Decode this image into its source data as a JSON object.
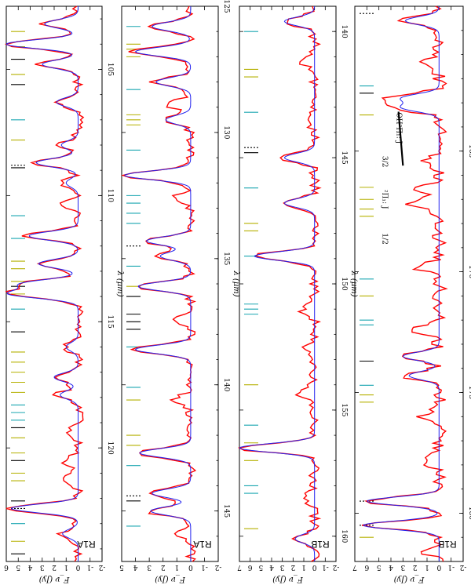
{
  "colors": {
    "observed": "#ff0000",
    "model": "#2222ee",
    "line_h2o": "#b5b000",
    "line_oh": "#1aa6b0",
    "line_other": "#000000",
    "dashed": "#000000"
  },
  "chart_data": [
    {
      "panel": "R1A",
      "type": "line",
      "xlabel": "λ (μm)",
      "ylabel": "F_ν (Jy)",
      "xlim": [
        102.5,
        124.5
      ],
      "ylim": [
        -2,
        6
      ],
      "xticks": [
        105,
        110,
        115,
        120
      ],
      "yticks": [
        -2,
        -1,
        0,
        1,
        2,
        3,
        4,
        5,
        6
      ],
      "series": [
        {
          "kind": "observed",
          "baseline": 0.0,
          "noise": 0.45,
          "peaks": [
            [
              103.2,
              3.0
            ],
            [
              104.0,
              6.2
            ],
            [
              104.8,
              3.2
            ],
            [
              106.3,
              2.0
            ],
            [
              108.0,
              1.6
            ],
            [
              108.7,
              3.7
            ],
            [
              109.5,
              1.2
            ],
            [
              110.3,
              1.2
            ],
            [
              111.6,
              4.3
            ],
            [
              112.7,
              3.5
            ],
            [
              113.5,
              4.8
            ],
            [
              113.9,
              5.8
            ],
            [
              116.0,
              1.2
            ],
            [
              117.2,
              2.2
            ],
            [
              117.9,
              1.7
            ],
            [
              119.4,
              1.0
            ],
            [
              120.5,
              1.2
            ],
            [
              121.2,
              1.0
            ],
            [
              122.4,
              5.8
            ],
            [
              123.4,
              1.5
            ]
          ]
        },
        {
          "kind": "model",
          "baseline": 0.0,
          "peaks": [
            [
              103.2,
              2.8
            ],
            [
              104.0,
              6.0
            ],
            [
              104.8,
              3.0
            ],
            [
              106.3,
              1.8
            ],
            [
              108.0,
              1.4
            ],
            [
              108.7,
              3.5
            ],
            [
              109.5,
              1.0
            ],
            [
              111.6,
              4.1
            ],
            [
              112.7,
              3.3
            ],
            [
              113.5,
              4.6
            ],
            [
              113.9,
              5.6
            ],
            [
              116.0,
              1.0
            ],
            [
              117.2,
              2.0
            ],
            [
              117.9,
              1.5
            ],
            [
              122.4,
              5.6
            ],
            [
              123.4,
              1.3
            ]
          ]
        }
      ],
      "line_markers": [
        {
          "x": 103.5,
          "species": "h2o"
        },
        {
          "x": 104.1,
          "species": "h2o"
        },
        {
          "x": 104.6,
          "species": "other"
        },
        {
          "x": 105.2,
          "species": "h2o"
        },
        {
          "x": 105.6,
          "species": "other"
        },
        {
          "x": 107.0,
          "species": "oh"
        },
        {
          "x": 107.8,
          "species": "h2o"
        },
        {
          "x": 108.8,
          "species": "dashed"
        },
        {
          "x": 108.9,
          "species": "other"
        },
        {
          "x": 110.8,
          "species": "oh"
        },
        {
          "x": 111.7,
          "species": "oh"
        },
        {
          "x": 112.6,
          "species": "h2o"
        },
        {
          "x": 112.9,
          "species": "h2o"
        },
        {
          "x": 113.4,
          "species": "h2o"
        },
        {
          "x": 113.6,
          "species": "other"
        },
        {
          "x": 113.9,
          "species": "h2o"
        },
        {
          "x": 114.5,
          "species": "oh"
        },
        {
          "x": 115.4,
          "species": "other"
        },
        {
          "x": 116.2,
          "species": "h2o"
        },
        {
          "x": 116.6,
          "species": "h2o"
        },
        {
          "x": 117.0,
          "species": "h2o"
        },
        {
          "x": 117.4,
          "species": "h2o"
        },
        {
          "x": 117.8,
          "species": "h2o"
        },
        {
          "x": 118.3,
          "species": "oh"
        },
        {
          "x": 118.6,
          "species": "oh"
        },
        {
          "x": 118.9,
          "species": "oh"
        },
        {
          "x": 119.2,
          "species": "other"
        },
        {
          "x": 119.6,
          "species": "h2o"
        },
        {
          "x": 120.2,
          "species": "h2o"
        },
        {
          "x": 120.5,
          "species": "other"
        },
        {
          "x": 121.0,
          "species": "h2o"
        },
        {
          "x": 121.3,
          "species": "h2o"
        },
        {
          "x": 122.1,
          "species": "other"
        },
        {
          "x": 122.4,
          "species": "dashed"
        },
        {
          "x": 123.0,
          "species": "oh"
        },
        {
          "x": 123.7,
          "species": "h2o"
        },
        {
          "x": 124.2,
          "species": "other"
        }
      ]
    },
    {
      "panel": "R1A",
      "type": "line",
      "xlabel": "λ (μm)",
      "ylabel": "F_ν (Jy)",
      "xlim": [
        125,
        147
      ],
      "ylim": [
        -2,
        5
      ],
      "xticks": [
        125,
        130,
        135,
        140,
        145
      ],
      "yticks": [
        -2,
        -1,
        0,
        1,
        2,
        3,
        4,
        5
      ],
      "series": [
        {
          "kind": "observed",
          "baseline": 0.0,
          "noise": 0.35,
          "peaks": [
            [
              125.8,
              3.0
            ],
            [
              126.8,
              4.2
            ],
            [
              128.0,
              2.7
            ],
            [
              128.9,
              1.8
            ],
            [
              129.5,
              2.0
            ],
            [
              131.7,
              5.0
            ],
            [
              132.6,
              1.2
            ],
            [
              134.3,
              3.4
            ],
            [
              134.9,
              2.4
            ],
            [
              136.1,
              4.0
            ],
            [
              137.4,
              1.5
            ],
            [
              138.6,
              4.2
            ],
            [
              140.6,
              1.2
            ],
            [
              142.7,
              3.9
            ],
            [
              144.3,
              3.2
            ],
            [
              145.0,
              3.2
            ],
            [
              145.9,
              1.2
            ]
          ]
        },
        {
          "kind": "model",
          "baseline": 0.0,
          "peaks": [
            [
              125.8,
              2.8
            ],
            [
              126.8,
              4.0
            ],
            [
              128.0,
              2.5
            ],
            [
              129.5,
              1.8
            ],
            [
              131.7,
              4.8
            ],
            [
              134.3,
              3.2
            ],
            [
              134.9,
              2.2
            ],
            [
              136.1,
              3.8
            ],
            [
              138.6,
              4.0
            ],
            [
              142.7,
              3.7
            ],
            [
              144.3,
              2.8
            ],
            [
              145.0,
              2.9
            ]
          ]
        }
      ],
      "line_markers": [
        {
          "x": 125.8,
          "species": "oh"
        },
        {
          "x": 126.5,
          "species": "h2o"
        },
        {
          "x": 126.7,
          "species": "h2o"
        },
        {
          "x": 127.0,
          "species": "h2o"
        },
        {
          "x": 128.3,
          "species": "oh"
        },
        {
          "x": 129.3,
          "species": "h2o"
        },
        {
          "x": 129.5,
          "species": "h2o"
        },
        {
          "x": 129.7,
          "species": "h2o"
        },
        {
          "x": 130.7,
          "species": "oh"
        },
        {
          "x": 132.5,
          "species": "oh"
        },
        {
          "x": 132.8,
          "species": "oh"
        },
        {
          "x": 133.2,
          "species": "oh"
        },
        {
          "x": 133.6,
          "species": "oh"
        },
        {
          "x": 134.5,
          "species": "dashed"
        },
        {
          "x": 135.3,
          "species": "oh"
        },
        {
          "x": 136.1,
          "species": "h2o"
        },
        {
          "x": 136.5,
          "species": "other"
        },
        {
          "x": 137.2,
          "species": "other"
        },
        {
          "x": 137.5,
          "species": "other"
        },
        {
          "x": 137.8,
          "species": "other"
        },
        {
          "x": 138.5,
          "species": "oh"
        },
        {
          "x": 140.1,
          "species": "oh"
        },
        {
          "x": 140.6,
          "species": "h2o"
        },
        {
          "x": 142.0,
          "species": "h2o"
        },
        {
          "x": 142.4,
          "species": "h2o"
        },
        {
          "x": 143.2,
          "species": "oh"
        },
        {
          "x": 144.4,
          "species": "dashed"
        },
        {
          "x": 144.6,
          "species": "other"
        },
        {
          "x": 145.6,
          "species": "oh"
        }
      ]
    },
    {
      "panel": "R1B",
      "type": "line",
      "xlabel": "λ (μm)",
      "ylabel": "F_ν (Jy)",
      "xlim": [
        139,
        161
      ],
      "ylim": [
        -2,
        7
      ],
      "xticks": [
        140,
        145,
        150,
        155,
        160
      ],
      "yticks": [
        -2,
        -1,
        0,
        1,
        2,
        3,
        4,
        5,
        6,
        7
      ],
      "series": [
        {
          "kind": "observed",
          "baseline": 0.0,
          "noise": 0.5,
          "peaks": [
            [
              139.6,
              3.0
            ],
            [
              141.2,
              1.2
            ],
            [
              143.5,
              1.0
            ],
            [
              145.0,
              3.0
            ],
            [
              146.8,
              3.0
            ],
            [
              148.9,
              5.8
            ],
            [
              151.0,
              1.2
            ],
            [
              152.5,
              1.0
            ],
            [
              154.3,
              1.5
            ],
            [
              156.5,
              7.3
            ],
            [
              158.5,
              1.0
            ],
            [
              160.1,
              2.0
            ]
          ]
        },
        {
          "kind": "model",
          "baseline": 0.0,
          "peaks": [
            [
              139.6,
              2.8
            ],
            [
              145.0,
              2.8
            ],
            [
              146.8,
              2.8
            ],
            [
              148.9,
              5.6
            ],
            [
              156.5,
              7.0
            ],
            [
              160.1,
              1.8
            ]
          ]
        }
      ],
      "line_markers": [
        {
          "x": 140.0,
          "species": "oh"
        },
        {
          "x": 141.5,
          "species": "h2o"
        },
        {
          "x": 141.8,
          "species": "h2o"
        },
        {
          "x": 143.2,
          "species": "oh"
        },
        {
          "x": 144.6,
          "species": "dashed"
        },
        {
          "x": 144.8,
          "species": "other"
        },
        {
          "x": 146.2,
          "species": "oh"
        },
        {
          "x": 147.6,
          "species": "h2o"
        },
        {
          "x": 147.9,
          "species": "h2o"
        },
        {
          "x": 148.9,
          "species": "oh"
        },
        {
          "x": 150.8,
          "species": "oh"
        },
        {
          "x": 151.0,
          "species": "oh"
        },
        {
          "x": 151.2,
          "species": "oh"
        },
        {
          "x": 154.0,
          "species": "h2o"
        },
        {
          "x": 155.6,
          "species": "oh"
        },
        {
          "x": 156.3,
          "species": "h2o"
        },
        {
          "x": 157.0,
          "species": "h2o"
        },
        {
          "x": 158.0,
          "species": "oh"
        },
        {
          "x": 158.3,
          "species": "oh"
        },
        {
          "x": 159.7,
          "species": "h2o"
        }
      ]
    },
    {
      "panel": "R1B",
      "type": "line",
      "xlabel": "λ (μm)",
      "ylabel": "F_ν (Jy)",
      "xlim": [
        159,
        182
      ],
      "ylim": [
        -2,
        7
      ],
      "xticks": [
        165,
        170,
        175,
        180
      ],
      "yticks": [
        -2,
        -1,
        0,
        1,
        2,
        3,
        4,
        5,
        6,
        7
      ],
      "series": [
        {
          "kind": "observed",
          "baseline": 0.0,
          "noise": 0.6,
          "peaks": [
            [
              159.6,
              3.0
            ],
            [
              161.3,
              1.2
            ],
            [
              162.8,
              4.0
            ],
            [
              163.2,
              4.0
            ],
            [
              165.4,
              1.5
            ],
            [
              166.6,
              2.0
            ],
            [
              167.2,
              2.4
            ],
            [
              169.8,
              1.8
            ],
            [
              172.4,
              2.8
            ],
            [
              173.5,
              3.4
            ],
            [
              174.3,
              2.8
            ],
            [
              176.0,
              1.5
            ],
            [
              177.8,
              1.5
            ],
            [
              179.5,
              6.2
            ],
            [
              180.5,
              6.5
            ],
            [
              181.6,
              1.0
            ]
          ]
        },
        {
          "kind": "model",
          "baseline": 0.0,
          "peaks": [
            [
              159.6,
              2.8
            ],
            [
              162.8,
              3.0
            ],
            [
              163.2,
              3.0
            ],
            [
              173.5,
              3.0
            ],
            [
              174.3,
              2.5
            ],
            [
              179.5,
              6.0
            ],
            [
              180.5,
              6.3
            ]
          ]
        }
      ],
      "line_markers": [
        {
          "x": 159.3,
          "species": "dashed"
        },
        {
          "x": 162.3,
          "species": "oh"
        },
        {
          "x": 162.6,
          "species": "other"
        },
        {
          "x": 163.5,
          "species": "h2o"
        },
        {
          "x": 166.5,
          "species": "h2o"
        },
        {
          "x": 167.0,
          "species": "h2o"
        },
        {
          "x": 167.4,
          "species": "h2o"
        },
        {
          "x": 167.7,
          "species": "h2o"
        },
        {
          "x": 170.3,
          "species": "oh"
        },
        {
          "x": 171.0,
          "species": "h2o"
        },
        {
          "x": 172.0,
          "species": "oh"
        },
        {
          "x": 172.2,
          "species": "oh"
        },
        {
          "x": 173.7,
          "species": "other"
        },
        {
          "x": 174.7,
          "species": "oh"
        },
        {
          "x": 175.1,
          "species": "h2o"
        },
        {
          "x": 175.4,
          "species": "h2o"
        },
        {
          "x": 179.5,
          "species": "dashed"
        },
        {
          "x": 180.5,
          "species": "dashed"
        },
        {
          "x": 181.0,
          "species": "h2o"
        }
      ],
      "annotations": {
        "oh_label": "OH²Π₁: J",
        "pi_32": "3/2",
        "pi_12": "1/2",
        "pi_sym": "²Π₁: J"
      }
    }
  ]
}
